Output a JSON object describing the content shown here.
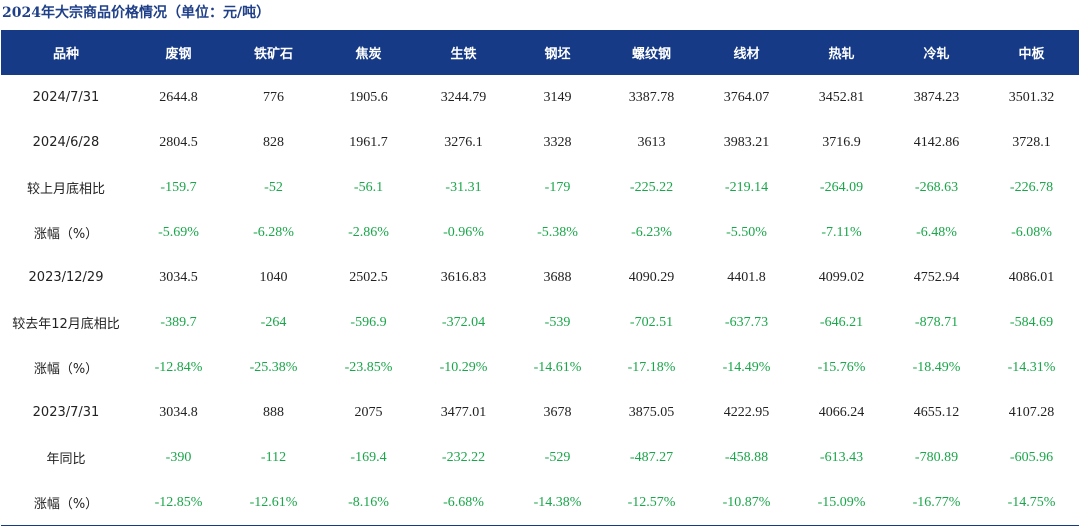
{
  "title": "2024年大宗商品价格情况（单位：元/吨）",
  "colors": {
    "header_bg": "#163a85",
    "header_text": "#ffffff",
    "negative": "#1aa64a",
    "text": "#222222"
  },
  "table": {
    "headers": [
      "品种",
      "废钢",
      "铁矿石",
      "焦炭",
      "生铁",
      "钢坯",
      "螺纹钢",
      "线材",
      "热轧",
      "冷轧",
      "中板"
    ],
    "rows": [
      {
        "label": "2024/7/31",
        "type": "price",
        "values": [
          "2644.8",
          "776",
          "1905.6",
          "3244.79",
          "3149",
          "3387.78",
          "3764.07",
          "3452.81",
          "3874.23",
          "3501.32"
        ]
      },
      {
        "label": "2024/6/28",
        "type": "price",
        "values": [
          "2804.5",
          "828",
          "1961.7",
          "3276.1",
          "3328",
          "3613",
          "3983.21",
          "3716.9",
          "4142.86",
          "3728.1"
        ]
      },
      {
        "label": "较上月底相比",
        "type": "change",
        "values": [
          "-159.7",
          "-52",
          "-56.1",
          "-31.31",
          "-179",
          "-225.22",
          "-219.14",
          "-264.09",
          "-268.63",
          "-226.78"
        ]
      },
      {
        "label": "涨幅（%）",
        "type": "change",
        "values": [
          "-5.69%",
          "-6.28%",
          "-2.86%",
          "-0.96%",
          "-5.38%",
          "-6.23%",
          "-5.50%",
          "-7.11%",
          "-6.48%",
          "-6.08%"
        ]
      },
      {
        "label": "2023/12/29",
        "type": "price",
        "values": [
          "3034.5",
          "1040",
          "2502.5",
          "3616.83",
          "3688",
          "4090.29",
          "4401.8",
          "4099.02",
          "4752.94",
          "4086.01"
        ]
      },
      {
        "label": "较去年12月底相比",
        "type": "change",
        "values": [
          "-389.7",
          "-264",
          "-596.9",
          "-372.04",
          "-539",
          "-702.51",
          "-637.73",
          "-646.21",
          "-878.71",
          "-584.69"
        ]
      },
      {
        "label": "涨幅（%）",
        "type": "change",
        "values": [
          "-12.84%",
          "-25.38%",
          "-23.85%",
          "-10.29%",
          "-14.61%",
          "-17.18%",
          "-14.49%",
          "-15.76%",
          "-18.49%",
          "-14.31%"
        ]
      },
      {
        "label": "2023/7/31",
        "type": "price",
        "values": [
          "3034.8",
          "888",
          "2075",
          "3477.01",
          "3678",
          "3875.05",
          "4222.95",
          "4066.24",
          "4655.12",
          "4107.28"
        ]
      },
      {
        "label": "年同比",
        "type": "change",
        "values": [
          "-390",
          "-112",
          "-169.4",
          "-232.22",
          "-529",
          "-487.27",
          "-458.88",
          "-613.43",
          "-780.89",
          "-605.96"
        ]
      },
      {
        "label": "涨幅（%）",
        "type": "change",
        "values": [
          "-12.85%",
          "-12.61%",
          "-8.16%",
          "-6.68%",
          "-14.38%",
          "-12.57%",
          "-10.87%",
          "-15.09%",
          "-16.77%",
          "-14.75%"
        ]
      }
    ]
  }
}
